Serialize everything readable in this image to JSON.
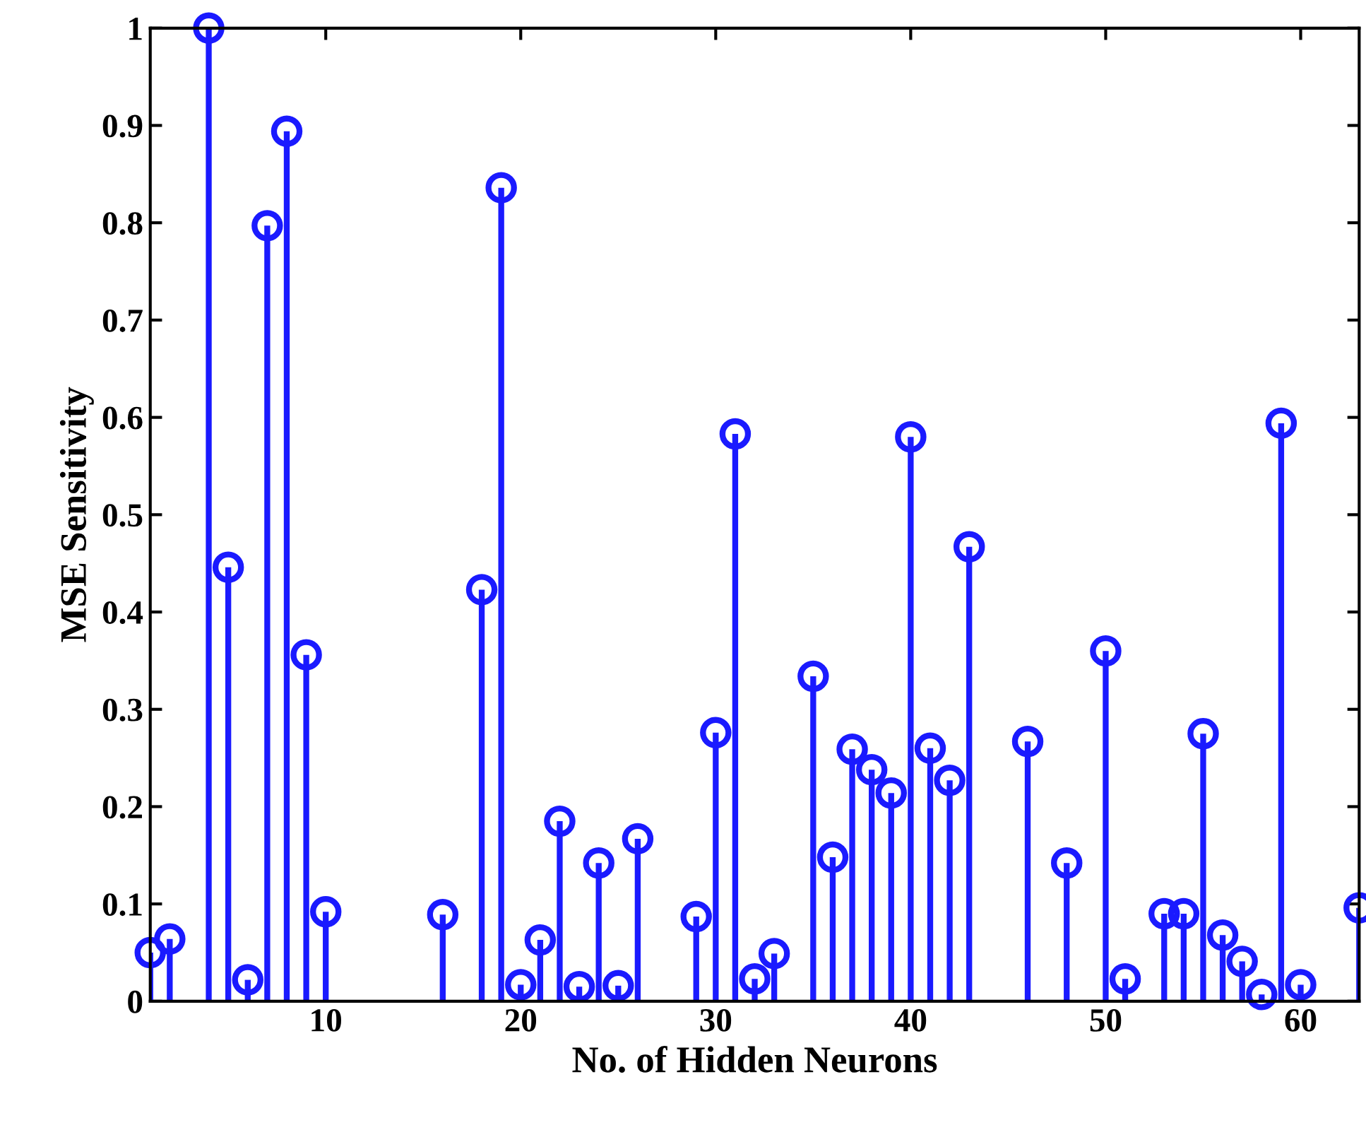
{
  "chart_data": {
    "type": "lollipop",
    "xlabel": "No. of Hidden Neurons",
    "ylabel": "MSE Sensitivity",
    "x": [
      1,
      2,
      4,
      5,
      6,
      7,
      8,
      9,
      10,
      16,
      18,
      19,
      20,
      21,
      22,
      23,
      24,
      25,
      26,
      29,
      30,
      31,
      32,
      33,
      35,
      36,
      37,
      38,
      39,
      40,
      41,
      42,
      43,
      46,
      48,
      50,
      51,
      53,
      54,
      55,
      56,
      57,
      58,
      59,
      60,
      63
    ],
    "values": [
      0.05,
      0.064,
      1.0,
      0.446,
      0.022,
      0.797,
      0.894,
      0.356,
      0.092,
      0.089,
      0.423,
      0.836,
      0.017,
      0.063,
      0.185,
      0.015,
      0.142,
      0.016,
      0.167,
      0.087,
      0.276,
      0.583,
      0.023,
      0.049,
      0.334,
      0.148,
      0.259,
      0.238,
      0.214,
      0.58,
      0.26,
      0.227,
      0.467,
      0.267,
      0.142,
      0.36,
      0.023,
      0.09,
      0.09,
      0.275,
      0.068,
      0.041,
      0.007,
      0.594,
      0.017,
      0.096
    ],
    "color": "#1a1aff",
    "marker": "circle",
    "grid": false,
    "xlim": [
      1,
      63
    ],
    "xticks": [
      10,
      20,
      30,
      40,
      50,
      60
    ],
    "ylim": [
      0,
      1
    ],
    "yticks": [
      0,
      0.1,
      0.2,
      0.3,
      0.4,
      0.5,
      0.6,
      0.7,
      0.8,
      0.9,
      1
    ]
  }
}
